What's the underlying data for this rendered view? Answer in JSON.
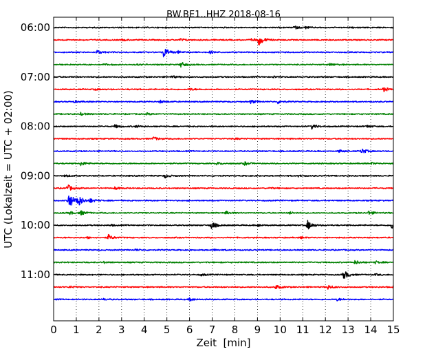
{
  "chart_data": {
    "type": "line",
    "title": "BW.BE1..HHZ 2018-08-16",
    "xlabel": "Zeit  [min]",
    "ylabel": "UTC (Lokalzeit = UTC + 02:00)",
    "xlim": [
      0,
      15
    ],
    "x_ticks": [
      "0",
      "1",
      "2",
      "3",
      "4",
      "5",
      "6",
      "7",
      "8",
      "9",
      "10",
      "11",
      "12",
      "13",
      "14",
      "15"
    ],
    "y_ticks": [
      "06:00",
      "07:00",
      "08:00",
      "09:00",
      "10:00",
      "11:00"
    ],
    "grid": "vertical dotted",
    "trace_colors": [
      "#000000",
      "#ff0000",
      "#0000ff",
      "#008000"
    ],
    "traces": [
      {
        "start": "06:00",
        "events": [
          [
            10.6,
            0.25
          ],
          [
            11.1,
            0.15
          ],
          [
            15.0,
            0.2
          ]
        ]
      },
      {
        "start": "06:15",
        "events": [
          [
            9.05,
            0.85
          ],
          [
            8.75,
            0.25
          ],
          [
            5.6,
            0.2
          ],
          [
            3.0,
            0.1
          ]
        ]
      },
      {
        "start": "06:30",
        "events": [
          [
            4.85,
            0.9
          ],
          [
            1.9,
            0.3
          ],
          [
            5.5,
            0.15
          ],
          [
            6.9,
            0.2
          ]
        ]
      },
      {
        "start": "06:45",
        "events": [
          [
            5.6,
            0.45
          ],
          [
            12.2,
            0.2
          ],
          [
            2.2,
            0.12
          ],
          [
            3.7,
            0.1
          ]
        ]
      },
      {
        "start": "07:00",
        "events": [
          [
            5.2,
            0.2
          ],
          [
            9.7,
            0.12
          ]
        ]
      },
      {
        "start": "07:15",
        "events": [
          [
            14.55,
            0.35
          ],
          [
            6.0,
            0.2
          ],
          [
            1.8,
            0.12
          ]
        ]
      },
      {
        "start": "07:30",
        "events": [
          [
            8.7,
            0.3
          ],
          [
            9.9,
            0.25
          ],
          [
            4.7,
            0.2
          ],
          [
            0.9,
            0.12
          ]
        ]
      },
      {
        "start": "07:45",
        "events": [
          [
            1.2,
            0.2
          ],
          [
            4.1,
            0.15
          ]
        ]
      },
      {
        "start": "08:00",
        "events": [
          [
            11.4,
            0.4
          ],
          [
            2.7,
            0.25
          ],
          [
            3.6,
            0.2
          ],
          [
            13.8,
            0.2
          ]
        ]
      },
      {
        "start": "08:15",
        "events": [
          [
            4.4,
            0.3
          ],
          [
            8.0,
            0.1
          ]
        ]
      },
      {
        "start": "08:30",
        "events": [
          [
            13.6,
            0.4
          ],
          [
            12.6,
            0.2
          ]
        ]
      },
      {
        "start": "08:45",
        "events": [
          [
            1.2,
            0.35
          ],
          [
            8.4,
            0.3
          ],
          [
            7.2,
            0.2
          ],
          [
            14.0,
            0.15
          ]
        ]
      },
      {
        "start": "09:00",
        "events": [
          [
            4.9,
            0.3
          ],
          [
            0.5,
            0.15
          ],
          [
            10.8,
            0.12
          ]
        ]
      },
      {
        "start": "09:15",
        "events": [
          [
            0.6,
            0.6
          ],
          [
            2.7,
            0.2
          ],
          [
            9.5,
            0.12
          ]
        ]
      },
      {
        "start": "09:30",
        "events": [
          [
            0.65,
            1.5
          ],
          [
            1.05,
            1.0
          ],
          [
            1.6,
            0.3
          ]
        ]
      },
      {
        "start": "09:45",
        "events": [
          [
            1.15,
            0.4
          ],
          [
            0.7,
            0.25
          ],
          [
            7.6,
            0.25
          ],
          [
            10.4,
            0.2
          ],
          [
            13.9,
            0.3
          ]
        ]
      },
      {
        "start": "10:00",
        "events": [
          [
            6.95,
            0.65
          ],
          [
            11.2,
            0.8
          ],
          [
            14.9,
            0.6
          ],
          [
            9.0,
            0.2
          ],
          [
            2.5,
            0.12
          ]
        ]
      },
      {
        "start": "10:15",
        "events": [
          [
            2.4,
            0.45
          ],
          [
            1.5,
            0.15
          ],
          [
            10.9,
            0.12
          ]
        ]
      },
      {
        "start": "10:30",
        "events": [
          [
            3.6,
            0.15
          ],
          [
            7.1,
            0.12
          ]
        ]
      },
      {
        "start": "10:45",
        "events": [
          [
            13.3,
            0.3
          ],
          [
            14.2,
            0.2
          ],
          [
            2.2,
            0.12
          ]
        ]
      },
      {
        "start": "11:00",
        "events": [
          [
            12.8,
            0.75
          ],
          [
            6.5,
            0.15
          ],
          [
            14.2,
            0.12
          ]
        ]
      },
      {
        "start": "11:15",
        "events": [
          [
            9.8,
            0.35
          ],
          [
            12.1,
            0.35
          ],
          [
            15.0,
            0.35
          ],
          [
            0.7,
            0.15
          ]
        ]
      },
      {
        "start": "11:30",
        "events": [
          [
            6.0,
            0.25
          ],
          [
            12.5,
            0.2
          ],
          [
            2.2,
            0.12
          ]
        ]
      }
    ]
  }
}
